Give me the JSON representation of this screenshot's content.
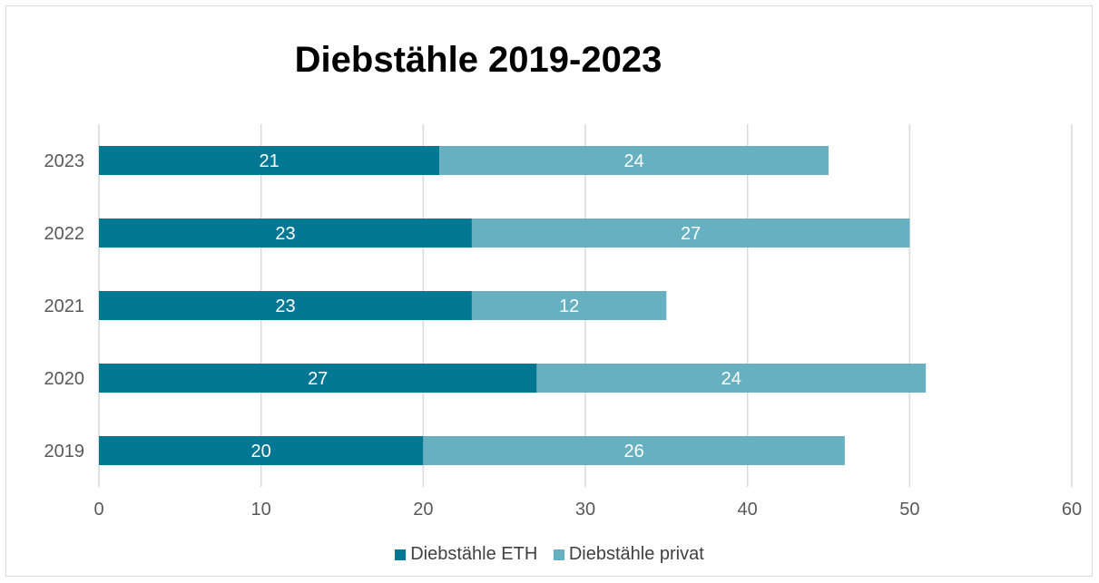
{
  "chart_data": {
    "type": "bar",
    "orientation": "horizontal",
    "stacked": true,
    "title": "Diebstähle 2019-2023",
    "categories": [
      "2023",
      "2022",
      "2021",
      "2020",
      "2019"
    ],
    "series": [
      {
        "name": "Diebstähle ETH",
        "values": [
          21,
          23,
          23,
          27,
          20
        ],
        "color": "#007894"
      },
      {
        "name": "Diebstähle privat",
        "values": [
          24,
          27,
          12,
          24,
          26
        ],
        "color": "#66b0c2"
      }
    ],
    "xlim": [
      0,
      60
    ],
    "x_ticks": [
      "0",
      "10",
      "20",
      "30",
      "40",
      "50",
      "60"
    ],
    "xlabel": "",
    "ylabel": "",
    "grid": "vertical",
    "legend_position": "bottom",
    "data_labels": true
  }
}
